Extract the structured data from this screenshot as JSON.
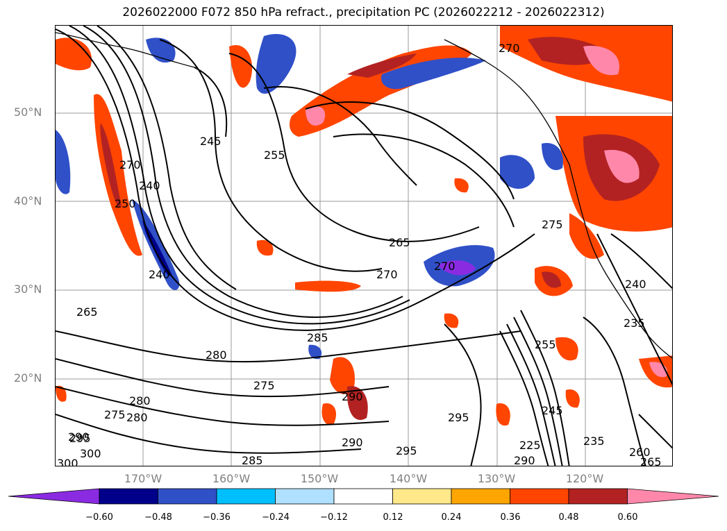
{
  "title": "2026022000 F072 850 hPa refract., precipitation PC (2026022212 - 2026022312)",
  "map": {
    "lat_labels": [
      "50°N",
      "40°N",
      "30°N",
      "20°N"
    ],
    "lon_labels": [
      "170°W",
      "160°W",
      "150°W",
      "140°W",
      "130°W",
      "120°W"
    ],
    "contour_labels": [
      "270",
      "245",
      "255",
      "240",
      "240",
      "250",
      "265",
      "265",
      "270",
      "270",
      "275",
      "275",
      "280",
      "280",
      "275",
      "285",
      "290",
      "290",
      "295",
      "295",
      "295",
      "300",
      "290",
      "280",
      "255",
      "245",
      "235",
      "240",
      "235",
      "260",
      "265",
      "225",
      "290",
      "285",
      "270",
      "300"
    ]
  },
  "colorbar": {
    "ticks": [
      "−0.60",
      "−0.48",
      "−0.36",
      "−0.24",
      "−0.12",
      "0.12",
      "0.24",
      "0.36",
      "0.48",
      "0.60"
    ],
    "colors": [
      "#8a2be2",
      "#00008b",
      "#3050c8",
      "#00bfff",
      "#b0e0ff",
      "#ffffff",
      "#ffe88a",
      "#ffa500",
      "#ff4500",
      "#b22222",
      "#ff88aa"
    ]
  }
}
